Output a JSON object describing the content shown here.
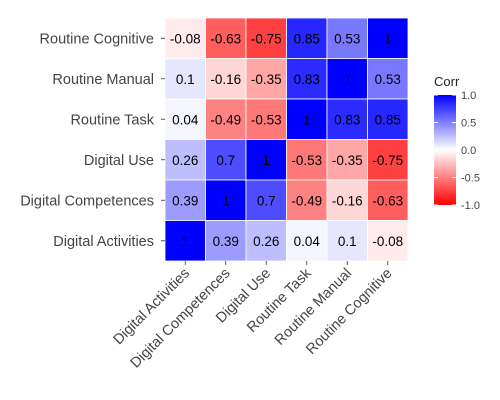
{
  "chart_data": {
    "type": "heatmap",
    "title": "",
    "xlabel": "",
    "ylabel": "",
    "x_categories": [
      "Digital Activities",
      "Digital Competences",
      "Digital Use",
      "Routine Task",
      "Routine Manual",
      "Routine Cognitive"
    ],
    "y_categories_top_to_bottom": [
      "Routine Cognitive",
      "Routine Manual",
      "Routine Task",
      "Digital Use",
      "Digital Competences",
      "Digital Activities"
    ],
    "values": [
      [
        -0.08,
        -0.63,
        -0.75,
        0.85,
        0.53,
        1
      ],
      [
        0.1,
        -0.16,
        -0.35,
        0.83,
        1,
        0.53
      ],
      [
        0.04,
        -0.49,
        -0.53,
        1,
        0.83,
        0.85
      ],
      [
        0.26,
        0.7,
        1,
        -0.53,
        -0.35,
        -0.75
      ],
      [
        0.39,
        1,
        0.7,
        -0.49,
        -0.16,
        -0.63
      ],
      [
        1,
        0.39,
        0.26,
        0.04,
        0.1,
        -0.08
      ]
    ],
    "value_labels": [
      [
        "-0.08",
        "-0.63",
        "-0.75",
        "0.85",
        "0.53",
        "1"
      ],
      [
        "0.1",
        "-0.16",
        "-0.35",
        "0.83",
        "1",
        "0.53"
      ],
      [
        "0.04",
        "-0.49",
        "-0.53",
        "1",
        "0.83",
        "0.85"
      ],
      [
        "0.26",
        "0.7",
        "1",
        "-0.53",
        "-0.35",
        "-0.75"
      ],
      [
        "0.39",
        "1",
        "0.7",
        "-0.49",
        "-0.16",
        "-0.63"
      ],
      [
        "1",
        "0.39",
        "0.26",
        "0.04",
        "0.1",
        "-0.08"
      ]
    ],
    "color_scale": {
      "low": "#ff0000",
      "mid": "#ffffff",
      "high": "#0000ff",
      "limits": [
        -1,
        1
      ]
    },
    "legend": {
      "title": "Corr",
      "placement": "right",
      "ticks": [
        1.0,
        0.5,
        0.0,
        -0.5,
        -1.0
      ],
      "tick_labels": [
        "1.0",
        "0.5",
        "0.0",
        "-0.5",
        "-1.0"
      ]
    },
    "grid": false
  }
}
